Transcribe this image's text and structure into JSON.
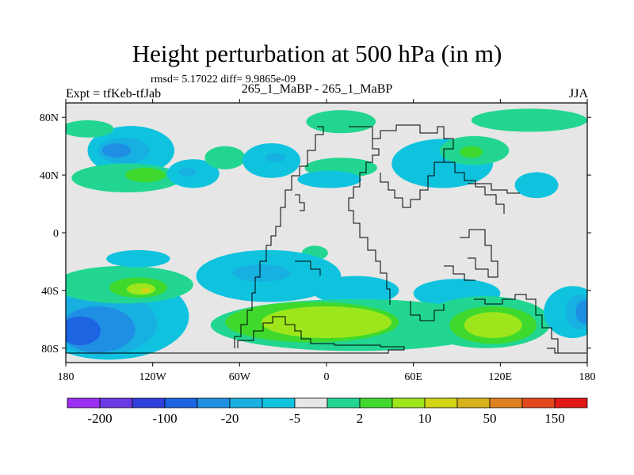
{
  "chart_data": {
    "type": "heatmap",
    "title": "Height perturbation at 500 hPa (in m)",
    "stats_text": "rmsd= 5.17022  diff= 9.9865e-09",
    "subtitle": "265_1_MaBP - 265_1_MaBP",
    "left_label": "Expt = tfKeb-tfJab",
    "right_label": "JJA",
    "x_ticks": [
      {
        "value": -180,
        "label": "180"
      },
      {
        "value": -120,
        "label": "120W"
      },
      {
        "value": -60,
        "label": "60W"
      },
      {
        "value": 0,
        "label": "0"
      },
      {
        "value": 60,
        "label": "60E"
      },
      {
        "value": 120,
        "label": "120E"
      },
      {
        "value": 180,
        "label": "180"
      }
    ],
    "y_ticks": [
      {
        "value": 80,
        "label": "80N"
      },
      {
        "value": 40,
        "label": "40N"
      },
      {
        "value": 0,
        "label": "0"
      },
      {
        "value": -40,
        "label": "40S"
      },
      {
        "value": -80,
        "label": "80S"
      }
    ],
    "xlim": [
      -180,
      180
    ],
    "ylim": [
      -90,
      90
    ],
    "colorbar": {
      "colors": [
        "#9b2ff2",
        "#6b3ae6",
        "#2f3fdc",
        "#1c64e2",
        "#1f8fe4",
        "#17b0e0",
        "#0fc3df",
        "#e6e6e6",
        "#22d691",
        "#3fd92e",
        "#9ee61c",
        "#d1d515",
        "#d8b31a",
        "#e0801e",
        "#e3481f",
        "#e31616"
      ],
      "labels": [
        {
          "boundary": 1,
          "label": "-200"
        },
        {
          "boundary": 3,
          "label": "-100"
        },
        {
          "boundary": 5,
          "label": "-20"
        },
        {
          "boundary": 7,
          "label": "-5"
        },
        {
          "boundary": 9,
          "label": "2"
        },
        {
          "boundary": 11,
          "label": "10"
        },
        {
          "boundary": 13,
          "label": "50"
        },
        {
          "boundary": 15,
          "label": "150"
        }
      ]
    },
    "background_color": "#e6e6e6",
    "fields": [
      {
        "name": "north-pacific-blob-outer",
        "level": 6,
        "lon": -135,
        "lat": 57,
        "rx": 30,
        "ry": 17
      },
      {
        "name": "north-pacific-blob-mid",
        "level": 5,
        "lon": -140,
        "lat": 57,
        "rx": 18,
        "ry": 9
      },
      {
        "name": "north-pacific-blob-core",
        "level": 4,
        "lon": -145,
        "lat": 57,
        "rx": 10,
        "ry": 5
      },
      {
        "name": "north-pacific-south-ridge",
        "level": 8,
        "lon": -138,
        "lat": 38,
        "rx": 38,
        "ry": 10
      },
      {
        "name": "north-pacific-ridge-core",
        "level": 9,
        "lon": -125,
        "lat": 40,
        "rx": 14,
        "ry": 5
      },
      {
        "name": "north-pacific-lobe",
        "level": 8,
        "lon": -165,
        "lat": 72,
        "rx": 18,
        "ry": 6
      },
      {
        "name": "central-pacific-trough",
        "level": 6,
        "lon": -92,
        "lat": 41,
        "rx": 18,
        "ry": 10
      },
      {
        "name": "central-pacific-trough-core",
        "level": 5,
        "lon": -96,
        "lat": 42,
        "rx": 6,
        "ry": 3
      },
      {
        "name": "central-pacific-ridge",
        "level": 8,
        "lon": -70,
        "lat": 52,
        "rx": 14,
        "ry": 8
      },
      {
        "name": "atlantic-trough",
        "level": 6,
        "lon": -38,
        "lat": 50,
        "rx": 20,
        "ry": 12
      },
      {
        "name": "atlantic-trough-core",
        "level": 5,
        "lon": -35,
        "lat": 52,
        "rx": 7,
        "ry": 3
      },
      {
        "name": "arctic-ridge-west",
        "level": 8,
        "lon": 10,
        "lat": 77,
        "rx": 24,
        "ry": 8
      },
      {
        "name": "europe-ridge",
        "level": 8,
        "lon": 10,
        "lat": 45,
        "rx": 25,
        "ry": 7
      },
      {
        "name": "europe-trough",
        "level": 6,
        "lon": 2,
        "lat": 37,
        "rx": 22,
        "ry": 6
      },
      {
        "name": "asia-trough-outer",
        "level": 6,
        "lon": 80,
        "lat": 48,
        "rx": 35,
        "ry": 17
      },
      {
        "name": "asia-ridge-inner",
        "level": 8,
        "lon": 102,
        "lat": 57,
        "rx": 24,
        "ry": 10
      },
      {
        "name": "asia-ridge-core",
        "level": 9,
        "lon": 100,
        "lat": 56,
        "rx": 8,
        "ry": 4
      },
      {
        "name": "arctic-ridge-east",
        "level": 8,
        "lon": 140,
        "lat": 78,
        "rx": 40,
        "ry": 8
      },
      {
        "name": "pacific-east-trough",
        "level": 6,
        "lon": 145,
        "lat": 33,
        "rx": 15,
        "ry": 9
      },
      {
        "name": "tropical-ridge",
        "level": 8,
        "lon": -8,
        "lat": -14,
        "rx": 9,
        "ry": 5
      },
      {
        "name": "tropical-trough",
        "level": 6,
        "lon": -8,
        "lat": -22,
        "rx": 9,
        "ry": 4
      },
      {
        "name": "south-pacific-trough-outer",
        "level": 6,
        "lon": -150,
        "lat": -58,
        "rx": 55,
        "ry": 30
      },
      {
        "name": "south-pacific-trough-mid",
        "level": 5,
        "lon": -155,
        "lat": -63,
        "rx": 38,
        "ry": 22
      },
      {
        "name": "south-pacific-trough-inner",
        "level": 4,
        "lon": -158,
        "lat": -67,
        "rx": 26,
        "ry": 16
      },
      {
        "name": "south-pacific-trough-core",
        "level": 3,
        "lon": -170,
        "lat": -68,
        "rx": 14,
        "ry": 10
      },
      {
        "name": "south-pacific-ridge-outer",
        "level": 8,
        "lon": -140,
        "lat": -36,
        "rx": 48,
        "ry": 13
      },
      {
        "name": "south-pacific-ridge-inner",
        "level": 9,
        "lon": -130,
        "lat": -38,
        "rx": 20,
        "ry": 7
      },
      {
        "name": "south-pacific-ridge-core",
        "level": 10,
        "lon": -128,
        "lat": -39,
        "rx": 10,
        "ry": 4
      },
      {
        "name": "south-pacific-ridge-peak",
        "level": 11,
        "lon": -125,
        "lat": -40,
        "rx": 3,
        "ry": 2
      },
      {
        "name": "south-pacific-trough-upper",
        "level": 6,
        "lon": -130,
        "lat": -18,
        "rx": 22,
        "ry": 6
      },
      {
        "name": "southern-ocean-trough-west",
        "level": 6,
        "lon": -40,
        "lat": -30,
        "rx": 50,
        "ry": 18
      },
      {
        "name": "southern-ocean-trough-west-core",
        "level": 5,
        "lon": -45,
        "lat": -28,
        "rx": 20,
        "ry": 6
      },
      {
        "name": "southern-ocean-trough-mid",
        "level": 6,
        "lon": 20,
        "lat": -40,
        "rx": 30,
        "ry": 10
      },
      {
        "name": "southern-ocean-trough-east",
        "level": 6,
        "lon": 90,
        "lat": -42,
        "rx": 30,
        "ry": 10
      },
      {
        "name": "southern-ocean-ridge-belt",
        "level": 8,
        "lon": 20,
        "lat": -64,
        "rx": 100,
        "ry": 18
      },
      {
        "name": "southern-ocean-ridge-west",
        "level": 9,
        "lon": -10,
        "lat": -62,
        "rx": 60,
        "ry": 14
      },
      {
        "name": "southern-ocean-ridge-west-core",
        "level": 10,
        "lon": 0,
        "lat": -62,
        "rx": 45,
        "ry": 11
      },
      {
        "name": "southern-ocean-ridge-east",
        "level": 8,
        "lon": 110,
        "lat": -62,
        "rx": 45,
        "ry": 18
      },
      {
        "name": "southern-ocean-ridge-east-inner",
        "level": 9,
        "lon": 115,
        "lat": -64,
        "rx": 30,
        "ry": 13
      },
      {
        "name": "southern-ocean-ridge-east-core",
        "level": 10,
        "lon": 115,
        "lat": -64,
        "rx": 20,
        "ry": 9
      },
      {
        "name": "antarctic-trough-east",
        "level": 6,
        "lon": 170,
        "lat": -55,
        "rx": 20,
        "ry": 18
      },
      {
        "name": "antarctic-trough-east-inner",
        "level": 5,
        "lon": 175,
        "lat": -55,
        "rx": 10,
        "ry": 12
      },
      {
        "name": "antarctic-trough-east-core",
        "level": 4,
        "lon": 178,
        "lat": -55,
        "rx": 6,
        "ry": 8
      }
    ]
  }
}
